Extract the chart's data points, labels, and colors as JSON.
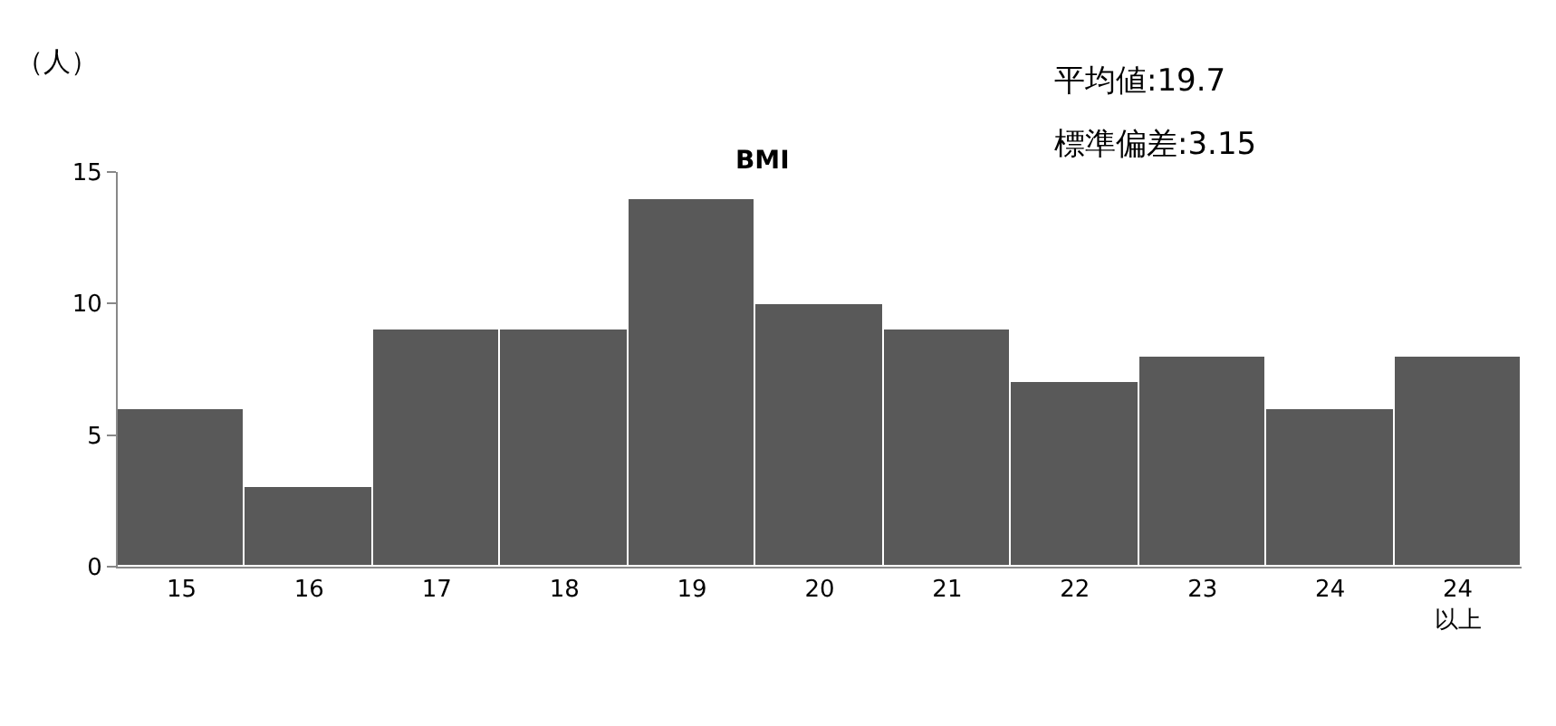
{
  "chart_data": {
    "type": "bar",
    "title": "BMI",
    "ylabel": "（人）",
    "categories": [
      "15",
      "16",
      "17",
      "18",
      "19",
      "20",
      "21",
      "22",
      "23",
      "24",
      "24\n以上"
    ],
    "values": [
      6,
      3,
      9,
      9,
      14,
      10,
      9,
      7,
      8,
      6,
      8
    ],
    "color": "#595959",
    "ylim": [
      0,
      15
    ],
    "yticks": [
      0,
      5,
      10,
      15
    ],
    "legend": false,
    "annotations": [
      "平均値:19.7",
      "標準偏差:3.15"
    ]
  }
}
